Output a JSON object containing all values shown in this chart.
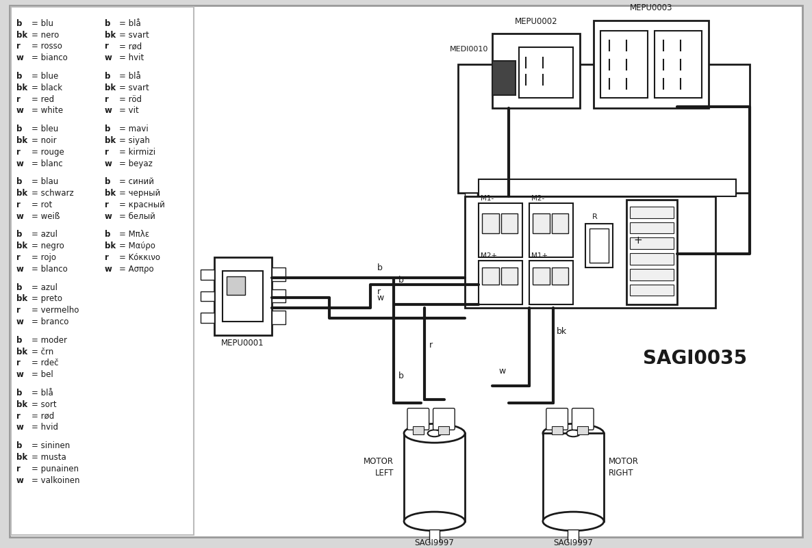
{
  "bg_color": "#d8d8d8",
  "diagram_bg": "#ffffff",
  "line_color": "#1a1a1a",
  "legend_groups": [
    [
      [
        "b = blu",
        "b = blå"
      ],
      [
        "bk = nero",
        "bk = svart"
      ],
      [
        "r = rosso",
        "r = rød"
      ],
      [
        "w = bianco",
        "w = hvit"
      ]
    ],
    [
      [
        "b = blue",
        "b = blå"
      ],
      [
        "bk = black",
        "bk = svart"
      ],
      [
        "r = red",
        "r = röd"
      ],
      [
        "w = white",
        "w = vit"
      ]
    ],
    [
      [
        "b = bleu",
        "b = mavi"
      ],
      [
        "bk = noir",
        "bk = siyah"
      ],
      [
        "r = rouge",
        "r = kirmizi"
      ],
      [
        "w = blanc",
        "w = beyaz"
      ]
    ],
    [
      [
        "b = blau",
        "b = синий"
      ],
      [
        "bk = schwarz",
        "bk = черный"
      ],
      [
        "r = rot",
        "r = красный"
      ],
      [
        "w = weiß",
        "w = белый"
      ]
    ],
    [
      [
        "b = azul",
        "b = Mπλε"
      ],
      [
        "bk = negro",
        "bk = Mαύρο"
      ],
      [
        "r = rojo",
        "r = Kόκκινο"
      ],
      [
        "w = blanco",
        "w = Ασπρο"
      ]
    ],
    [
      [
        "b = azul",
        ""
      ],
      [
        "bk = preto",
        ""
      ],
      [
        "r = vermelho",
        ""
      ],
      [
        "w = branco",
        ""
      ]
    ],
    [
      [
        "b = moder",
        ""
      ],
      [
        "bk = črn",
        ""
      ],
      [
        "r = rdeč",
        ""
      ],
      [
        "w = bel",
        ""
      ]
    ],
    [
      [
        "b = blå",
        ""
      ],
      [
        "bk = sort",
        ""
      ],
      [
        "r = rød",
        ""
      ],
      [
        "w = hvid",
        ""
      ]
    ],
    [
      [
        "b = sininen",
        ""
      ],
      [
        "bk = musta",
        ""
      ],
      [
        "r = punainen",
        ""
      ],
      [
        "w = valkoinen",
        ""
      ]
    ]
  ]
}
